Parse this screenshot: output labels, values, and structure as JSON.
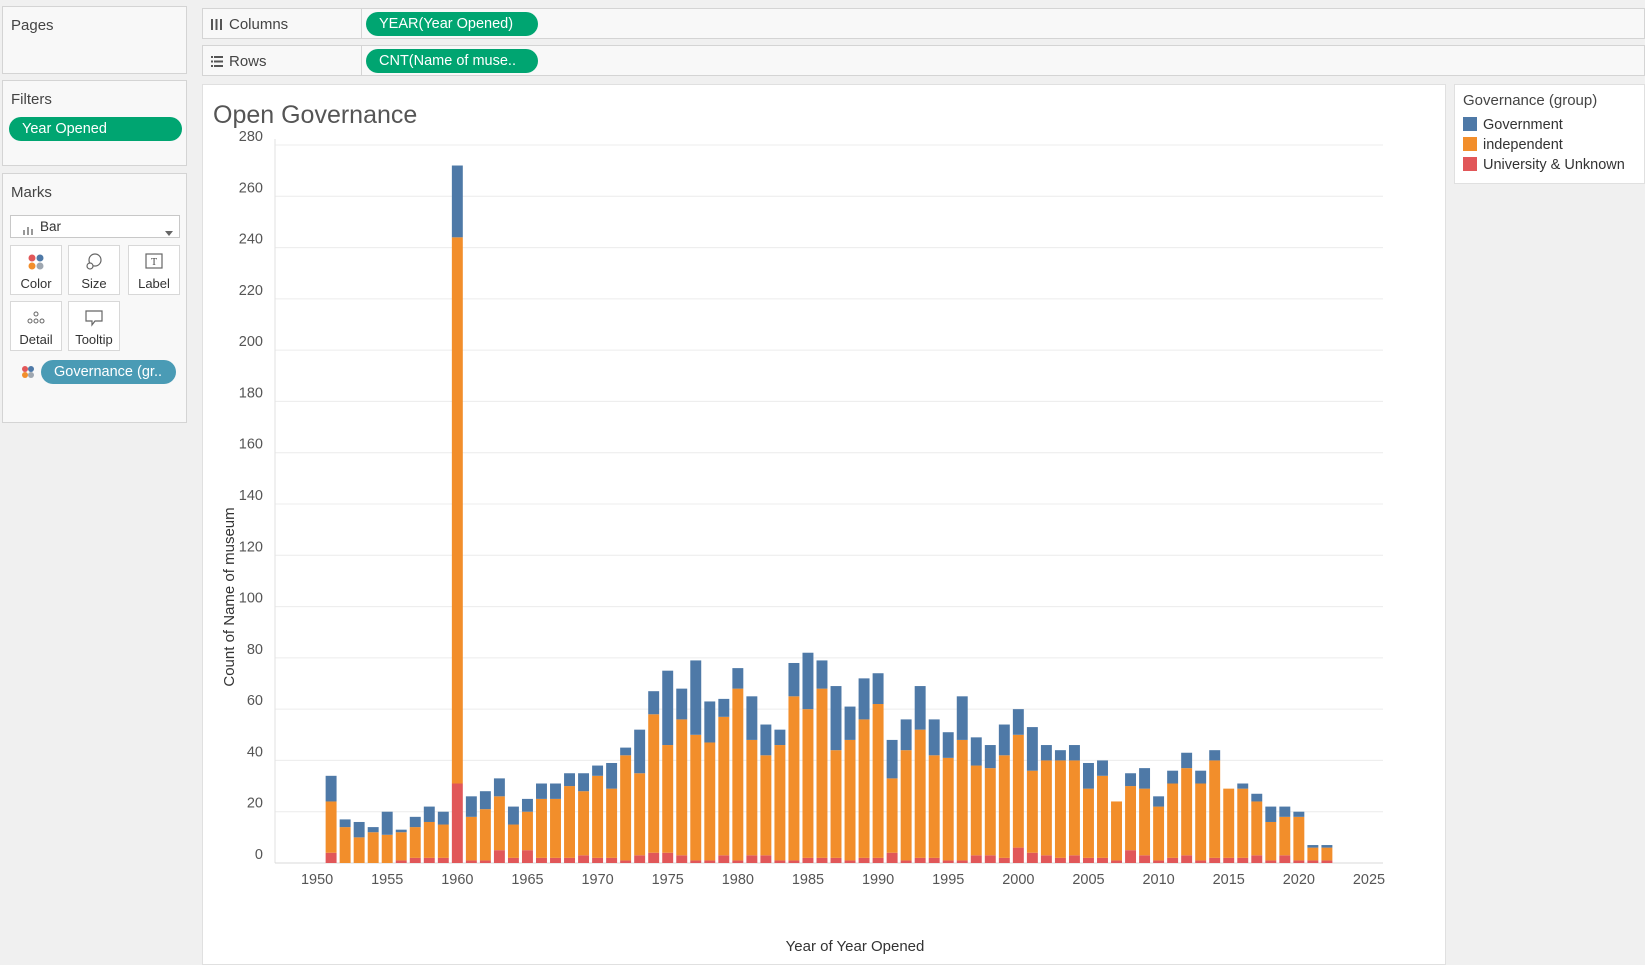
{
  "pages": {
    "title": "Pages"
  },
  "columns": {
    "label": "Columns",
    "pill": "YEAR(Year Opened)"
  },
  "rows": {
    "label": "Rows",
    "pill": "CNT(Name of muse.."
  },
  "filters": {
    "title": "Filters",
    "pill": "Year Opened"
  },
  "marks": {
    "title": "Marks",
    "mark_type": "Bar",
    "cards": [
      "Color",
      "Size",
      "Label",
      "Detail",
      "Tooltip"
    ],
    "color_pill": "Governance (gr.."
  },
  "legend": {
    "title": "Governance (group)",
    "items": [
      {
        "label": "Government",
        "color": "#4e79a7"
      },
      {
        "label": "independent",
        "color": "#f28e2b"
      },
      {
        "label": "University & Unknown",
        "color": "#e15759"
      }
    ]
  },
  "chart_data": {
    "type": "bar",
    "title": "Open Governance",
    "xlabel": "Year of Year Opened",
    "ylabel": "Count of Name of museum",
    "ylim": [
      0,
      280
    ],
    "xlim": [
      1947,
      2026
    ],
    "yticks": [
      0,
      20,
      40,
      60,
      80,
      100,
      120,
      140,
      160,
      180,
      200,
      220,
      240,
      260,
      280
    ],
    "xticks": [
      1950,
      1955,
      1960,
      1965,
      1970,
      1975,
      1980,
      1985,
      1990,
      1995,
      2000,
      2005,
      2010,
      2015,
      2020,
      2025
    ],
    "stacked": true,
    "grid": "horizontal",
    "legend_position": "right",
    "x": [
      1951,
      1952,
      1953,
      1954,
      1955,
      1956,
      1957,
      1958,
      1959,
      1960,
      1961,
      1962,
      1963,
      1964,
      1965,
      1966,
      1967,
      1968,
      1969,
      1970,
      1971,
      1972,
      1973,
      1974,
      1975,
      1976,
      1977,
      1978,
      1979,
      1980,
      1981,
      1982,
      1983,
      1984,
      1985,
      1986,
      1987,
      1988,
      1989,
      1990,
      1991,
      1992,
      1993,
      1994,
      1995,
      1996,
      1997,
      1998,
      1999,
      2000,
      2001,
      2002,
      2003,
      2004,
      2005,
      2006,
      2007,
      2008,
      2009,
      2010,
      2011,
      2012,
      2013,
      2014,
      2015,
      2016,
      2017,
      2018,
      2019,
      2020,
      2021,
      2022
    ],
    "series": [
      {
        "name": "University & Unknown",
        "color": "#e15759",
        "values": [
          4,
          0,
          0,
          0,
          0,
          1,
          2,
          2,
          2,
          31,
          1,
          1,
          5,
          2,
          5,
          2,
          2,
          2,
          3,
          2,
          2,
          1,
          3,
          4,
          4,
          3,
          1,
          1,
          3,
          1,
          3,
          3,
          1,
          1,
          2,
          2,
          2,
          1,
          2,
          2,
          4,
          1,
          2,
          2,
          1,
          1,
          3,
          3,
          2,
          6,
          4,
          3,
          2,
          3,
          2,
          2,
          1,
          5,
          3,
          1,
          2,
          3,
          1,
          2,
          2,
          2,
          3,
          1,
          3,
          1,
          1,
          1
        ]
      },
      {
        "name": "independent",
        "color": "#f28e2b",
        "values": [
          20,
          14,
          10,
          12,
          11,
          11,
          12,
          14,
          13,
          213,
          17,
          20,
          21,
          13,
          15,
          23,
          23,
          28,
          25,
          32,
          27,
          41,
          32,
          54,
          42,
          53,
          49,
          46,
          54,
          67,
          45,
          39,
          45,
          64,
          58,
          66,
          42,
          47,
          54,
          60,
          29,
          43,
          50,
          40,
          40,
          47,
          35,
          34,
          40,
          44,
          32,
          37,
          38,
          37,
          27,
          32,
          23,
          25,
          26,
          21,
          29,
          34,
          30,
          38,
          27,
          27,
          21,
          15,
          15,
          17,
          5,
          5
        ]
      },
      {
        "name": "Government",
        "color": "#4e79a7",
        "values": [
          10,
          3,
          6,
          2,
          9,
          1,
          4,
          6,
          5,
          28,
          8,
          7,
          7,
          7,
          5,
          6,
          6,
          5,
          7,
          4,
          10,
          3,
          17,
          9,
          29,
          12,
          29,
          16,
          7,
          8,
          17,
          12,
          6,
          13,
          22,
          11,
          25,
          13,
          16,
          12,
          15,
          12,
          17,
          14,
          10,
          17,
          11,
          9,
          12,
          10,
          17,
          6,
          4,
          6,
          10,
          6,
          0,
          5,
          8,
          4,
          5,
          6,
          5,
          4,
          0,
          2,
          3,
          6,
          4,
          2,
          1,
          1
        ]
      }
    ]
  }
}
